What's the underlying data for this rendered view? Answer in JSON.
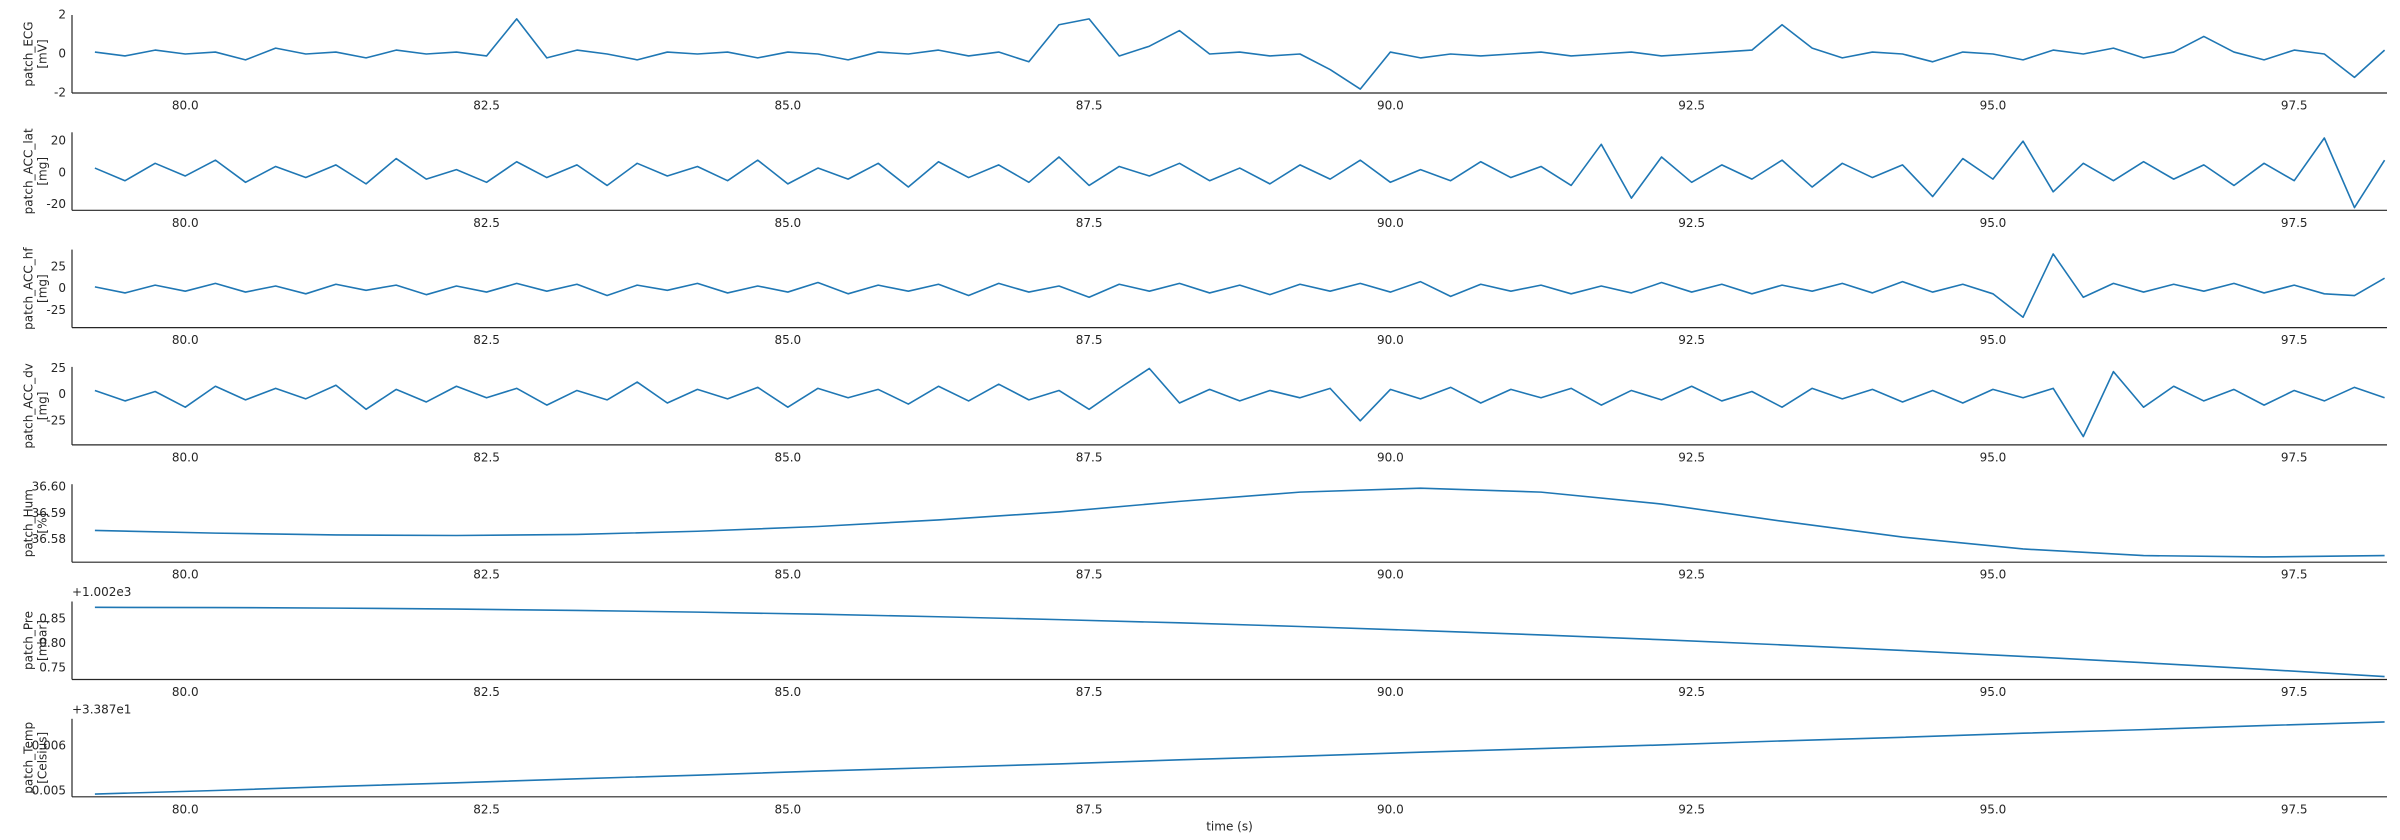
{
  "chart_data": [
    {
      "type": "line",
      "ylabel": [
        "patch_ECG",
        "[mV]"
      ],
      "color": "#1f77b4",
      "xlim": [
        79.06,
        98.27
      ],
      "ylim": [
        -2,
        2
      ],
      "yticks": [
        -2,
        0,
        2
      ],
      "xticks": [
        {
          "value": 80,
          "label": "80.0"
        },
        82.5,
        {
          "value": 85,
          "label": "85.0"
        },
        87.5,
        {
          "value": 90,
          "label": "90.0"
        },
        92.5,
        {
          "value": 95,
          "label": "95.0"
        },
        97.5
      ],
      "x": [
        79.25,
        79.5,
        79.75,
        80,
        80.25,
        80.5,
        80.75,
        81,
        81.25,
        81.5,
        81.75,
        82,
        82.25,
        82.5,
        82.75,
        83,
        83.25,
        83.5,
        83.75,
        84,
        84.25,
        84.5,
        84.75,
        85,
        85.25,
        85.5,
        85.75,
        86,
        86.25,
        86.5,
        86.75,
        87,
        87.25,
        87.5,
        87.75,
        88,
        88.25,
        88.5,
        88.75,
        89,
        89.25,
        89.5,
        89.75,
        90,
        90.25,
        90.5,
        90.75,
        91,
        91.25,
        91.5,
        91.75,
        92,
        92.25,
        92.5,
        92.75,
        93,
        93.25,
        93.5,
        93.75,
        94,
        94.25,
        94.5,
        94.75,
        95,
        95.25,
        95.5,
        95.75,
        96,
        96.25,
        96.5,
        96.75,
        97,
        97.25,
        97.5,
        97.75,
        98,
        98.25
      ],
      "values": [
        0.1,
        -0.1,
        0.2,
        0,
        0.1,
        -0.3,
        0.3,
        0,
        0.1,
        -0.2,
        0.2,
        0,
        0.1,
        -0.1,
        1.8,
        -0.2,
        0.2,
        0,
        -0.3,
        0.1,
        0,
        0.1,
        -0.2,
        0.1,
        0,
        -0.3,
        0.1,
        0,
        0.2,
        -0.1,
        0.1,
        -0.4,
        1.5,
        1.8,
        -0.1,
        0.4,
        1.2,
        0,
        0.1,
        -0.1,
        0,
        -0.8,
        -1.8,
        0.1,
        -0.2,
        0,
        -0.1,
        0,
        0.1,
        -0.1,
        0,
        0.1,
        -0.1,
        0,
        0.1,
        0.2,
        1.5,
        0.3,
        -0.2,
        0.1,
        0,
        -0.4,
        0.1,
        0,
        -0.3,
        0.2,
        0,
        0.3,
        -0.2,
        0.1,
        0.9,
        0.1,
        -0.3,
        0.2,
        0,
        -1.2,
        0.2
      ]
    },
    {
      "type": "line",
      "ylabel": [
        "patch_ACC_lat",
        "[mg]"
      ],
      "color": "#1f77b4",
      "xlim": [
        79.06,
        98.27
      ],
      "ylim": [
        -23.7,
        25.6
      ],
      "yticks": [
        -20,
        0,
        20
      ],
      "xticks": [
        {
          "value": 80,
          "label": "80.0"
        },
        82.5,
        {
          "value": 85,
          "label": "85.0"
        },
        87.5,
        {
          "value": 90,
          "label": "90.0"
        },
        92.5,
        {
          "value": 95,
          "label": "95.0"
        },
        97.5
      ],
      "x": [
        79.25,
        79.5,
        79.75,
        80,
        80.25,
        80.5,
        80.75,
        81,
        81.25,
        81.5,
        81.75,
        82,
        82.25,
        82.5,
        82.75,
        83,
        83.25,
        83.5,
        83.75,
        84,
        84.25,
        84.5,
        84.75,
        85,
        85.25,
        85.5,
        85.75,
        86,
        86.25,
        86.5,
        86.75,
        87,
        87.25,
        87.5,
        87.75,
        88,
        88.25,
        88.5,
        88.75,
        89,
        89.25,
        89.5,
        89.75,
        90,
        90.25,
        90.5,
        90.75,
        91,
        91.25,
        91.5,
        91.75,
        92,
        92.25,
        92.5,
        92.75,
        93,
        93.25,
        93.5,
        93.75,
        94,
        94.25,
        94.5,
        94.75,
        95,
        95.25,
        95.5,
        95.75,
        96,
        96.25,
        96.5,
        96.75,
        97,
        97.25,
        97.5,
        97.75,
        98,
        98.25
      ],
      "values": [
        3,
        -5,
        6,
        -2,
        8,
        -6,
        4,
        -3,
        5,
        -7,
        9,
        -4,
        2,
        -6,
        7,
        -3,
        5,
        -8,
        6,
        -2,
        4,
        -5,
        8,
        -7,
        3,
        -4,
        6,
        -9,
        7,
        -3,
        5,
        -6,
        10,
        -8,
        4,
        -2,
        6,
        -5,
        3,
        -7,
        5,
        -4,
        8,
        -6,
        2,
        -5,
        7,
        -3,
        4,
        -8,
        18,
        -16,
        10,
        -6,
        5,
        -4,
        8,
        -9,
        6,
        -3,
        5,
        -15,
        9,
        -4,
        20,
        -12,
        6,
        -5,
        7,
        -4,
        5,
        -8,
        6,
        -5,
        22,
        -22,
        8
      ]
    },
    {
      "type": "line",
      "ylabel": [
        "patch_ACC_hf",
        "[mg]"
      ],
      "color": "#1f77b4",
      "xlim": [
        79.06,
        98.27
      ],
      "ylim": [
        -45,
        45
      ],
      "yticks": [
        -25,
        0,
        25
      ],
      "xticks": [
        {
          "value": 80,
          "label": "80.0"
        },
        82.5,
        {
          "value": 85,
          "label": "85.0"
        },
        87.5,
        {
          "value": 90,
          "label": "90.0"
        },
        92.5,
        {
          "value": 95,
          "label": "95.0"
        },
        97.5
      ],
      "x": [
        79.25,
        79.5,
        79.75,
        80,
        80.25,
        80.5,
        80.75,
        81,
        81.25,
        81.5,
        81.75,
        82,
        82.25,
        82.5,
        82.75,
        83,
        83.25,
        83.5,
        83.75,
        84,
        84.25,
        84.5,
        84.75,
        85,
        85.25,
        85.5,
        85.75,
        86,
        86.25,
        86.5,
        86.75,
        87,
        87.25,
        87.5,
        87.75,
        88,
        88.25,
        88.5,
        88.75,
        89,
        89.25,
        89.5,
        89.75,
        90,
        90.25,
        90.5,
        90.75,
        91,
        91.25,
        91.5,
        91.75,
        92,
        92.25,
        92.5,
        92.75,
        93,
        93.25,
        93.5,
        93.75,
        94,
        94.25,
        94.5,
        94.75,
        95,
        95.25,
        95.5,
        95.75,
        96,
        96.25,
        96.5,
        96.75,
        97,
        97.25,
        97.5,
        97.75,
        98,
        98.25
      ],
      "values": [
        2,
        -5,
        4,
        -3,
        6,
        -4,
        3,
        -6,
        5,
        -2,
        4,
        -7,
        3,
        -4,
        6,
        -3,
        5,
        -8,
        4,
        -2,
        6,
        -5,
        3,
        -4,
        7,
        -6,
        4,
        -3,
        5,
        -8,
        6,
        -4,
        3,
        -10,
        5,
        -3,
        6,
        -5,
        4,
        -7,
        5,
        -3,
        6,
        -4,
        8,
        -9,
        5,
        -3,
        4,
        -6,
        3,
        -5,
        7,
        -4,
        5,
        -6,
        4,
        -3,
        6,
        -5,
        8,
        -4,
        5,
        -6,
        -33,
        40,
        -10,
        6,
        -4,
        5,
        -3,
        6,
        -5,
        4,
        -6,
        -8,
        12
      ]
    },
    {
      "type": "line",
      "ylabel": [
        "patch_ACC_dv",
        "[mg]"
      ],
      "color": "#1f77b4",
      "xlim": [
        79.06,
        98.27
      ],
      "ylim": [
        -48,
        26.5
      ],
      "yticks": [
        -25,
        0,
        25
      ],
      "xticks": [
        {
          "value": 80,
          "label": "80.0"
        },
        82.5,
        {
          "value": 85,
          "label": "85.0"
        },
        87.5,
        {
          "value": 90,
          "label": "90.0"
        },
        92.5,
        {
          "value": 95,
          "label": "95.0"
        },
        97.5
      ],
      "x": [
        79.25,
        79.5,
        79.75,
        80,
        80.25,
        80.5,
        80.75,
        81,
        81.25,
        81.5,
        81.75,
        82,
        82.25,
        82.5,
        82.75,
        83,
        83.25,
        83.5,
        83.75,
        84,
        84.25,
        84.5,
        84.75,
        85,
        85.25,
        85.5,
        85.75,
        86,
        86.25,
        86.5,
        86.75,
        87,
        87.25,
        87.5,
        87.75,
        88,
        88.25,
        88.5,
        88.75,
        89,
        89.25,
        89.5,
        89.75,
        90,
        90.25,
        90.5,
        90.75,
        91,
        91.25,
        91.5,
        91.75,
        92,
        92.25,
        92.5,
        92.75,
        93,
        93.25,
        93.5,
        93.75,
        94,
        94.25,
        94.5,
        94.75,
        95,
        95.25,
        95.5,
        95.75,
        96,
        96.25,
        96.5,
        96.75,
        97,
        97.25,
        97.5,
        97.75,
        98,
        98.25
      ],
      "values": [
        4,
        -6,
        3,
        -12,
        8,
        -5,
        6,
        -4,
        9,
        -14,
        5,
        -7,
        8,
        -3,
        6,
        -10,
        4,
        -5,
        12,
        -8,
        5,
        -4,
        7,
        -12,
        6,
        -3,
        5,
        -9,
        8,
        -6,
        10,
        -5,
        4,
        -14,
        6,
        25,
        -8,
        5,
        -6,
        4,
        -3,
        6,
        -25,
        5,
        -4,
        7,
        -8,
        5,
        -3,
        6,
        -10,
        4,
        -5,
        8,
        -6,
        3,
        -12,
        6,
        -4,
        5,
        -7,
        4,
        -8,
        5,
        -3,
        6,
        -40,
        22,
        -12,
        8,
        -6,
        5,
        -10,
        4,
        -6,
        7,
        -3
      ]
    },
    {
      "type": "line",
      "ylabel": [
        "patch_Hum",
        "[%]"
      ],
      "color": "#1f77b4",
      "xlim": [
        79.06,
        98.27
      ],
      "ylim": [
        36.5715,
        36.601
      ],
      "yticks": [
        36.58,
        36.59,
        {
          "value": 36.6,
          "label": "36.60"
        }
      ],
      "xticks": [
        {
          "value": 80,
          "label": "80.0"
        },
        82.5,
        {
          "value": 85,
          "label": "85.0"
        },
        87.5,
        {
          "value": 90,
          "label": "90.0"
        },
        92.5,
        {
          "value": 95,
          "label": "95.0"
        },
        97.5
      ],
      "x": [
        79.25,
        80.25,
        81.25,
        82.25,
        83.25,
        84.25,
        85.25,
        86.25,
        87.25,
        88.25,
        89.25,
        90.25,
        91.25,
        92.25,
        93.25,
        94.25,
        95.25,
        96.25,
        97.25,
        98.25
      ],
      "values": [
        36.5835,
        36.5825,
        36.5818,
        36.5816,
        36.582,
        36.5832,
        36.585,
        36.5875,
        36.5905,
        36.5945,
        36.598,
        36.5995,
        36.598,
        36.5935,
        36.587,
        36.581,
        36.5765,
        36.574,
        36.5735,
        36.574
      ]
    },
    {
      "type": "line",
      "ylabel": [
        "patch_Pre",
        "[mbar]"
      ],
      "offset_text": "+1.002e3",
      "color": "#1f77b4",
      "xlim": [
        79.06,
        98.27
      ],
      "ylim": [
        0.726,
        0.886
      ],
      "yticks": [
        0.75,
        {
          "value": 0.8,
          "label": "0.80"
        },
        0.85
      ],
      "xticks": [
        {
          "value": 80,
          "label": "80.0"
        },
        82.5,
        {
          "value": 85,
          "label": "85.0"
        },
        87.5,
        {
          "value": 90,
          "label": "90.0"
        },
        92.5,
        {
          "value": 95,
          "label": "95.0"
        },
        97.5
      ],
      "x": [
        79.25,
        80.25,
        81.25,
        82.25,
        83.25,
        84.25,
        85.25,
        86.25,
        87.25,
        88.25,
        89.25,
        90.25,
        91.25,
        92.25,
        93.25,
        94.25,
        95.25,
        96.25,
        97.25,
        98.25
      ],
      "values": [
        0.874,
        0.8736,
        0.8724,
        0.8705,
        0.8677,
        0.8642,
        0.8599,
        0.8547,
        0.8488,
        0.8422,
        0.8347,
        0.8264,
        0.8174,
        0.8076,
        0.797,
        0.7856,
        0.7734,
        0.7604,
        0.7467,
        0.7321
      ]
    },
    {
      "type": "line",
      "ylabel": [
        "patch_Temp",
        "[Celsius]"
      ],
      "offset_text": "+3.387e1",
      "xlabel": "time (s)",
      "color": "#1f77b4",
      "xlim": [
        79.06,
        98.27
      ],
      "ylim": [
        0.00487,
        0.0066
      ],
      "yticks": [
        0.005,
        0.006
      ],
      "xticks": [
        {
          "value": 80,
          "label": "80.0"
        },
        82.5,
        {
          "value": 85,
          "label": "85.0"
        },
        87.5,
        {
          "value": 90,
          "label": "90.0"
        },
        92.5,
        {
          "value": 95,
          "label": "95.0"
        },
        97.5
      ],
      "x": [
        79.25,
        80.25,
        81.25,
        82.25,
        83.25,
        84.25,
        85.25,
        86.25,
        87.25,
        88.25,
        89.25,
        90.25,
        91.25,
        92.25,
        93.25,
        94.25,
        95.25,
        96.25,
        97.25,
        98.25
      ],
      "values": [
        0.00493,
        0.00501,
        0.0051,
        0.00518,
        0.00527,
        0.00535,
        0.00544,
        0.00552,
        0.0056,
        0.00569,
        0.00577,
        0.00586,
        0.00594,
        0.00602,
        0.00611,
        0.00619,
        0.00628,
        0.00636,
        0.00645,
        0.00653
      ]
    }
  ]
}
